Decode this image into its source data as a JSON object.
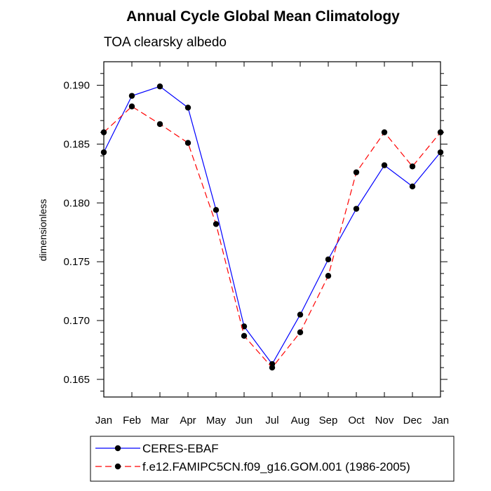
{
  "chart_data": {
    "type": "line",
    "title": "Annual Cycle Global Mean Climatology",
    "subtitle": "TOA clearsky albedo",
    "xlabel": "",
    "ylabel": "dimensionless",
    "categories": [
      "Jan",
      "Feb",
      "Mar",
      "Apr",
      "May",
      "Jun",
      "Jul",
      "Aug",
      "Sep",
      "Oct",
      "Nov",
      "Dec",
      "Jan"
    ],
    "ylim": [
      0.1635,
      0.192
    ],
    "yticks": [
      0.165,
      0.17,
      0.175,
      0.18,
      0.185,
      0.19
    ],
    "ytick_labels": [
      "0.165",
      "0.170",
      "0.175",
      "0.180",
      "0.185",
      "0.190"
    ],
    "grid": false,
    "legend_position": "bottom",
    "series": [
      {
        "name": "CERES-EBAF",
        "color": "#0000ff",
        "line_style": "solid",
        "marker": "filled-circle",
        "values": [
          0.1843,
          0.1891,
          0.1899,
          0.1881,
          0.1794,
          0.1695,
          0.1663,
          0.1705,
          0.1752,
          0.1795,
          0.1832,
          0.1814,
          0.1843
        ]
      },
      {
        "name": "f.e12.FAMIPC5CN.f09_g16.GOM.001 (1986-2005)",
        "color": "#ff0000",
        "line_style": "dashed",
        "marker": "filled-circle",
        "values": [
          0.186,
          0.1882,
          0.1867,
          0.1851,
          0.1782,
          0.1687,
          0.166,
          0.169,
          0.1738,
          0.1826,
          0.186,
          0.1831,
          0.186
        ]
      }
    ]
  }
}
